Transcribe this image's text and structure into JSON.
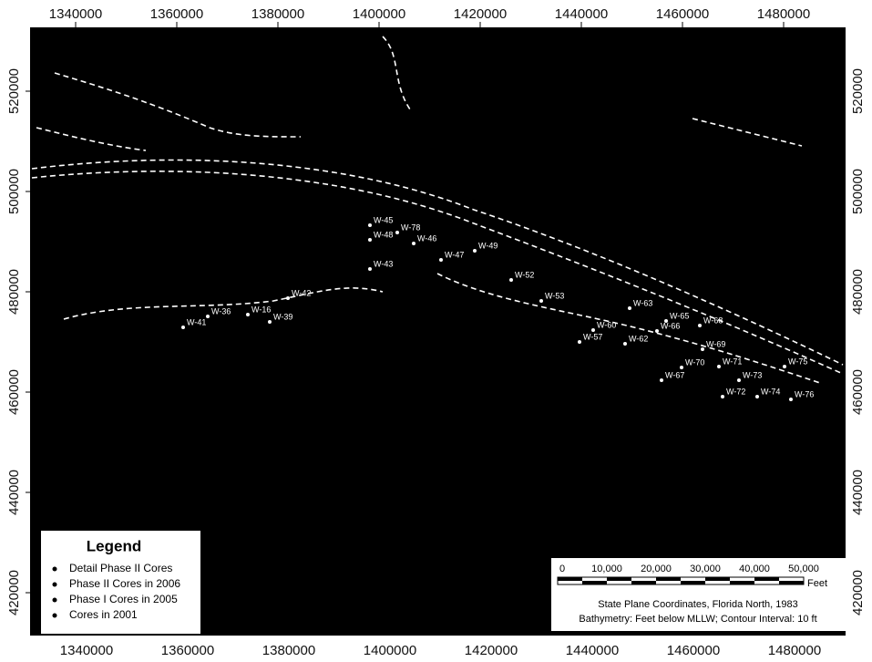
{
  "map": {
    "x_ticks": [
      1340000,
      1360000,
      1380000,
      1400000,
      1420000,
      1440000,
      1460000,
      1480000
    ],
    "y_ticks": [
      520000,
      500000,
      480000,
      460000,
      440000,
      420000
    ],
    "stations": [
      "W-45",
      "W-78",
      "W-48",
      "W-46",
      "W-47",
      "W-43",
      "W-49",
      "W-52",
      "W-53",
      "W-57",
      "W-60",
      "W-62",
      "W-63",
      "W-65",
      "W-66",
      "W-68",
      "W-69",
      "W-70",
      "W-71",
      "W-67",
      "W-72",
      "W-73",
      "W-74",
      "W-75",
      "W-76",
      "W-36",
      "W-39",
      "W-41",
      "W-42",
      "W-16"
    ],
    "legend": {
      "title": "Legend",
      "items": [
        "Detail Phase II Cores",
        "Phase II Cores in 2006",
        "Phase I Cores in 2005",
        "Cores in 2001"
      ]
    },
    "scale_bar": {
      "labels": [
        "0",
        "10,000",
        "20,000",
        "30,000",
        "40,000",
        "50,000"
      ],
      "unit": "Feet"
    },
    "notes": [
      "State Plane Coordinates, Florida North, 1983",
      "Bathymetry: Feet below MLLW; Contour Interval: 10 ft"
    ]
  }
}
